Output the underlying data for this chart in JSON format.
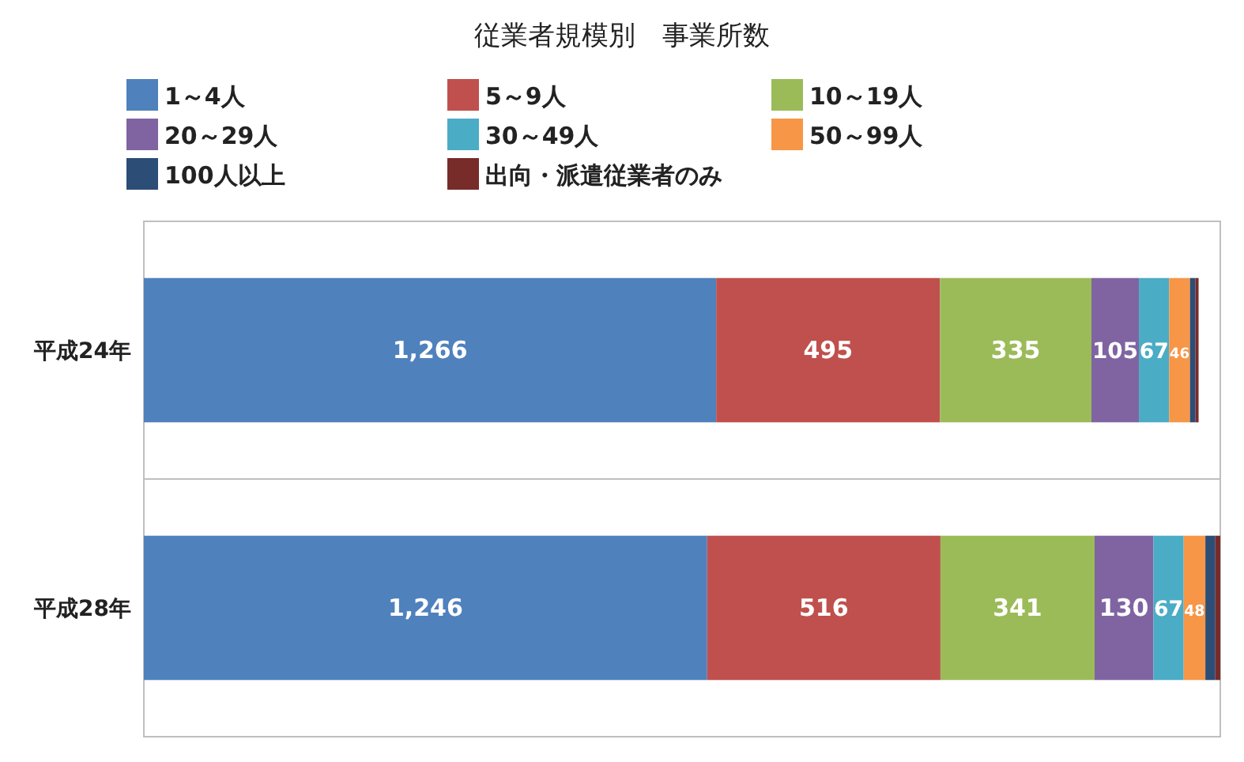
{
  "chart_data": {
    "type": "bar",
    "orientation": "horizontal",
    "stacked": true,
    "title": "従業者規模別　事業所数",
    "categories": [
      "平成24年",
      "平成28年"
    ],
    "legend": "top",
    "grid": "y",
    "series": [
      {
        "name": "1～4人",
        "color": "#4f81bd",
        "values": [
          1266,
          1246
        ],
        "value_labels": [
          "1,266",
          "1,246"
        ]
      },
      {
        "name": "5～9人",
        "color": "#c0504d",
        "values": [
          495,
          516
        ],
        "value_labels": [
          "495",
          "516"
        ]
      },
      {
        "name": "10～19人",
        "color": "#9bbb59",
        "values": [
          335,
          341
        ],
        "value_labels": [
          "335",
          "341"
        ]
      },
      {
        "name": "20～29人",
        "color": "#8064a2",
        "values": [
          105,
          130
        ],
        "value_labels": [
          "105",
          "130"
        ]
      },
      {
        "name": "30～49人",
        "color": "#4bacc6",
        "values": [
          67,
          67
        ],
        "value_labels": [
          "67",
          "67"
        ]
      },
      {
        "name": "50～99人",
        "color": "#f79646",
        "values": [
          46,
          48
        ],
        "value_labels": [
          "46",
          "48"
        ]
      },
      {
        "name": "100人以上",
        "color": "#2c4d75",
        "values": [
          12,
          22
        ],
        "value_labels": [
          null,
          null
        ]
      },
      {
        "name": "出向・派遣従業者のみ",
        "color": "#772c2a",
        "values": [
          7,
          11
        ],
        "value_labels": [
          null,
          null
        ]
      }
    ]
  }
}
